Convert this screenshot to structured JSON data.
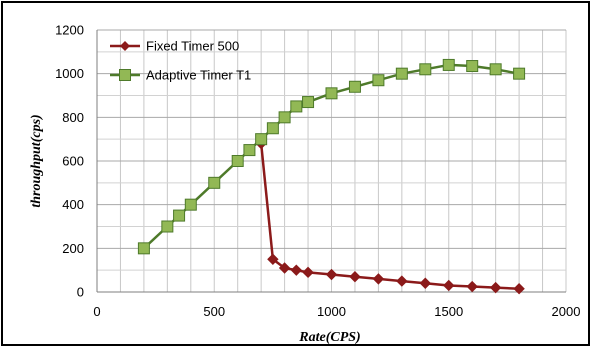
{
  "chart_data": {
    "type": "line",
    "title": "",
    "xlabel": "Rate(CPS)",
    "ylabel": "throughput(cps)",
    "xlim": [
      0,
      2000
    ],
    "ylim": [
      0,
      1200
    ],
    "x_ticks": [
      "0",
      "500",
      "1000",
      "1500",
      "2000"
    ],
    "y_ticks": [
      "0",
      "200",
      "400",
      "600",
      "800",
      "1000",
      "1200"
    ],
    "grid": true,
    "legend_position": "top-left",
    "series": [
      {
        "name": "Fixed Timer 500",
        "color": "#8b1a1a",
        "marker": "diamond",
        "points": [
          [
            700,
            680
          ],
          [
            750,
            150
          ],
          [
            800,
            110
          ],
          [
            850,
            100
          ],
          [
            900,
            90
          ],
          [
            1000,
            80
          ],
          [
            1100,
            70
          ],
          [
            1200,
            60
          ],
          [
            1300,
            50
          ],
          [
            1400,
            40
          ],
          [
            1500,
            30
          ],
          [
            1600,
            25
          ],
          [
            1700,
            20
          ],
          [
            1800,
            15
          ]
        ]
      },
      {
        "name": "Adaptive Timer T1",
        "color": "#4e7a2a",
        "marker_fill": "#92b855",
        "marker": "square",
        "points": [
          [
            200,
            200
          ],
          [
            300,
            300
          ],
          [
            350,
            350
          ],
          [
            400,
            400
          ],
          [
            500,
            500
          ],
          [
            600,
            600
          ],
          [
            650,
            650
          ],
          [
            700,
            700
          ],
          [
            750,
            750
          ],
          [
            800,
            800
          ],
          [
            850,
            850
          ],
          [
            900,
            870
          ],
          [
            1000,
            910
          ],
          [
            1100,
            940
          ],
          [
            1200,
            970
          ],
          [
            1300,
            1000
          ],
          [
            1400,
            1020
          ],
          [
            1500,
            1040
          ],
          [
            1600,
            1035
          ],
          [
            1700,
            1020
          ],
          [
            1800,
            1000
          ]
        ]
      }
    ]
  }
}
